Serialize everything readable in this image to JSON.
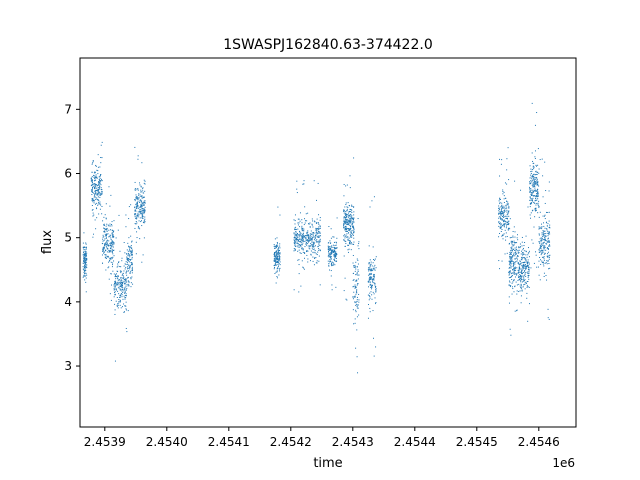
{
  "chart_data": {
    "type": "scatter",
    "title": "1SWASPJ162840.63-374422.0",
    "xlabel": "time",
    "ylabel": "flux",
    "x_offset_label": "1e6",
    "xlim": [
      2.45386,
      2.45466
    ],
    "ylim": [
      2.05,
      7.8
    ],
    "x_ticks": [
      2.4539,
      2.454,
      2.4541,
      2.4542,
      2.4543,
      2.4544,
      2.4545,
      2.4546
    ],
    "x_tick_labels": [
      "2.4539",
      "2.4540",
      "2.4541",
      "2.4542",
      "2.4543",
      "2.4544",
      "2.4545",
      "2.4546"
    ],
    "y_ticks": [
      3,
      4,
      5,
      6,
      7
    ],
    "y_tick_labels": [
      "3",
      "4",
      "5",
      "6",
      "7"
    ],
    "grid": false,
    "marker_color": "#1f77b4",
    "segments": [
      {
        "x": [
          2.453865,
          2.453871
        ],
        "center": 4.65,
        "spread": 0.22,
        "outlier": 0.4,
        "n": 120
      },
      {
        "x": [
          2.453878,
          2.453896
        ],
        "center": 5.75,
        "spread": 0.3,
        "outlier": 0.5,
        "n": 200
      },
      {
        "x": [
          2.453896,
          2.453915
        ],
        "center": 4.9,
        "spread": 0.32,
        "outlier": 0.6,
        "n": 200
      },
      {
        "x": [
          2.453915,
          2.453935
        ],
        "center": 4.25,
        "spread": 0.3,
        "outlier": 0.9,
        "n": 200
      },
      {
        "x": [
          2.453935,
          2.453945
        ],
        "center": 4.6,
        "spread": 0.3,
        "outlier": 0.8,
        "n": 110
      },
      {
        "x": [
          2.453948,
          2.453965
        ],
        "center": 5.45,
        "spread": 0.3,
        "outlier": 0.8,
        "n": 200
      },
      {
        "x": [
          2.454173,
          2.454183
        ],
        "center": 4.7,
        "spread": 0.18,
        "outlier": 0.6,
        "n": 140
      },
      {
        "x": [
          2.454205,
          2.454248
        ],
        "center": 4.98,
        "spread": 0.25,
        "outlier": 0.8,
        "n": 380
      },
      {
        "x": [
          2.45426,
          2.454275
        ],
        "center": 4.75,
        "spread": 0.16,
        "outlier": 0.5,
        "n": 150
      },
      {
        "x": [
          2.454285,
          2.454302
        ],
        "center": 5.2,
        "spread": 0.3,
        "outlier": 0.9,
        "n": 240
      },
      {
        "x": [
          2.4543,
          2.45431
        ],
        "center": 4.2,
        "spread": 0.45,
        "outlier": 1.0,
        "n": 90
      },
      {
        "x": [
          2.454325,
          2.454338
        ],
        "center": 4.35,
        "spread": 0.3,
        "outlier": 1.1,
        "n": 130
      },
      {
        "x": [
          2.454535,
          2.454552
        ],
        "center": 5.35,
        "spread": 0.28,
        "outlier": 0.8,
        "n": 180
      },
      {
        "x": [
          2.454552,
          2.454568
        ],
        "center": 4.6,
        "spread": 0.4,
        "outlier": 0.9,
        "n": 200
      },
      {
        "x": [
          2.454568,
          2.454585
        ],
        "center": 4.5,
        "spread": 0.3,
        "outlier": 1.1,
        "n": 200
      },
      {
        "x": [
          2.454585,
          2.4546
        ],
        "center": 5.75,
        "spread": 0.35,
        "outlier": 1.0,
        "n": 200
      },
      {
        "x": [
          2.4546,
          2.454618
        ],
        "center": 4.9,
        "spread": 0.35,
        "outlier": 1.0,
        "n": 200
      }
    ]
  }
}
